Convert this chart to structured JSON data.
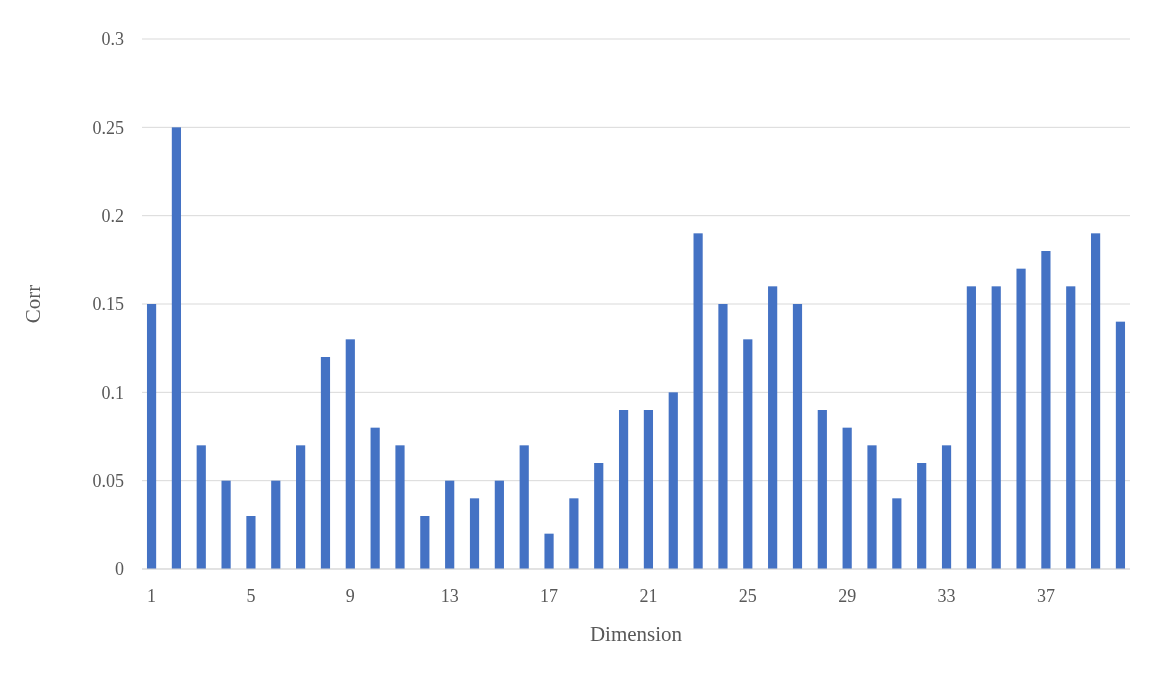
{
  "chart_data": {
    "type": "bar",
    "xlabel": "Dimension",
    "ylabel": "Corr",
    "categories": [
      "1",
      null,
      null,
      null,
      "5",
      null,
      null,
      null,
      "9",
      null,
      null,
      null,
      "13",
      null,
      null,
      null,
      "17",
      null,
      null,
      null,
      "21",
      null,
      null,
      null,
      "25",
      null,
      null,
      null,
      "29",
      null,
      null,
      null,
      "33",
      null,
      null,
      null,
      "37",
      null,
      null,
      null
    ],
    "values": [
      0.15,
      0.25,
      0.07,
      0.05,
      0.03,
      0.05,
      0.07,
      0.12,
      0.13,
      0.08,
      0.07,
      0.03,
      0.05,
      0.04,
      0.05,
      0.07,
      0.02,
      0.04,
      0.06,
      0.09,
      0.09,
      0.1,
      0.19,
      0.15,
      0.13,
      0.16,
      0.15,
      0.09,
      0.08,
      0.07,
      0.04,
      0.06,
      0.07,
      0.16,
      0.16,
      0.17,
      0.18,
      0.16,
      0.19,
      0.14
    ],
    "color": "#4472c4",
    "ylim": [
      0,
      0.3
    ],
    "yticks": [
      0,
      {
        "value": 0.05,
        "label": "0.05"
      },
      {
        "value": 0.1,
        "label": "0.1"
      },
      {
        "value": 0.15,
        "label": "0.15"
      },
      {
        "value": 0.2,
        "label": "0.2"
      },
      {
        "value": 0.25,
        "label": "0.25"
      },
      {
        "value": 0.3,
        "label": "0.3"
      }
    ],
    "grid": "y"
  }
}
